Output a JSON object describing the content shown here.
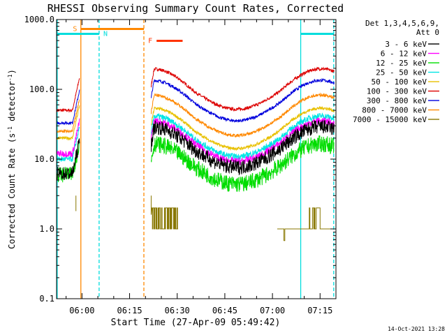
{
  "chart_data": {
    "type": "line",
    "title": "RHESSI Observing Summary Count Rates, Corrected",
    "xlabel": "Start Time (27-Apr-09 05:49:42)",
    "ylabel_main": "Corrected Count Rate (s",
    "ylabel_sup1": "-1",
    "ylabel_mid": " detector",
    "ylabel_sup2": "-1",
    "ylabel_end": ")",
    "yscale": "log",
    "ylim": [
      0.1,
      1000
    ],
    "xlim_minutes": [
      -8,
      80
    ],
    "y_ticks": [
      {
        "value": 0.1,
        "label": "0.1"
      },
      {
        "value": 1,
        "label": "1.0"
      },
      {
        "value": 10,
        "label": "10.0"
      },
      {
        "value": 100,
        "label": "100.0"
      },
      {
        "value": 1000,
        "label": "1000.0"
      }
    ],
    "x_ticks": [
      {
        "t": 0,
        "label": "06:00"
      },
      {
        "t": 15,
        "label": "06:15"
      },
      {
        "t": 30,
        "label": "06:30"
      },
      {
        "t": 45,
        "label": "06:45"
      },
      {
        "t": 60,
        "label": "07:00"
      },
      {
        "t": 75,
        "label": "07:15"
      }
    ],
    "legend_header": [
      "Det 1,3,4,5,6,9,",
      "Att 0"
    ],
    "series": [
      {
        "name": "3 - 6 keV",
        "color": "#000000"
      },
      {
        "name": "6 - 12 keV",
        "color": "#ff00ff"
      },
      {
        "name": "12 - 25 keV",
        "color": "#00dd00"
      },
      {
        "name": "25 - 50 keV",
        "color": "#00e5e5"
      },
      {
        "name": "50 - 100 keV",
        "color": "#e8c000"
      },
      {
        "name": "100 - 300 keV",
        "color": "#dd0000"
      },
      {
        "name": "300 - 800 keV",
        "color": "#0000dd"
      },
      {
        "name": "800 - 7000 keV",
        "color": "#ff8800"
      },
      {
        "name": "7000 - 15000 keV",
        "color": "#887700"
      }
    ],
    "flags": [
      {
        "label": "S",
        "color": "#ff8800"
      },
      {
        "label": "N",
        "color": "#00dddd"
      },
      {
        "label": "F",
        "color": "#ff3300"
      }
    ],
    "timestamp": "14-Oct-2021 13:28"
  }
}
